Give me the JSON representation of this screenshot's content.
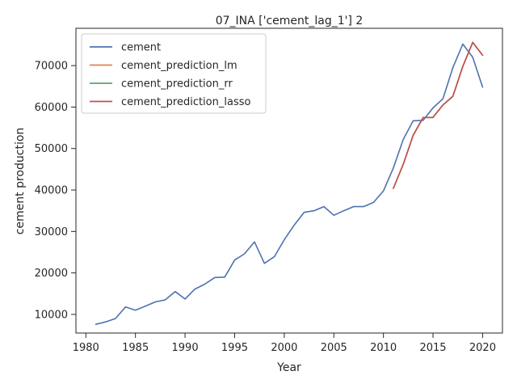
{
  "chart_data": {
    "type": "line",
    "title": "07_INA ['cement_lag_1'] 2",
    "xlabel": "Year",
    "ylabel": "cement production",
    "xlim": [
      1979,
      2022
    ],
    "ylim": [
      5500,
      79000
    ],
    "xticks": [
      1980,
      1985,
      1990,
      1995,
      2000,
      2005,
      2010,
      2015,
      2020
    ],
    "yticks": [
      10000,
      20000,
      30000,
      40000,
      50000,
      60000,
      70000
    ],
    "legend_position": "top-left",
    "series": [
      {
        "name": "cement",
        "color": "#4c72b0",
        "x": [
          1981,
          1982,
          1983,
          1984,
          1985,
          1986,
          1987,
          1988,
          1989,
          1990,
          1991,
          1992,
          1993,
          1994,
          1995,
          1996,
          1997,
          1998,
          1999,
          2000,
          2001,
          2002,
          2003,
          2004,
          2005,
          2006,
          2007,
          2008,
          2009,
          2010,
          2011,
          2012,
          2013,
          2014,
          2015,
          2016,
          2017,
          2018,
          2019,
          2020
        ],
        "y": [
          7600,
          8200,
          9000,
          11800,
          11000,
          12000,
          13000,
          13500,
          15500,
          13700,
          16100,
          17300,
          18900,
          19000,
          23100,
          24600,
          27500,
          22300,
          23900,
          28000,
          31500,
          34600,
          35000,
          36000,
          33900,
          35000,
          36000,
          36000,
          37000,
          39800,
          45300,
          52200,
          56700,
          56800,
          59800,
          62000,
          69500,
          75200,
          72000,
          64800
        ]
      },
      {
        "name": "cement_prediction_lm",
        "color": "#dd8452",
        "x": [
          2011,
          2012,
          2013,
          2014,
          2015,
          2016,
          2017,
          2018,
          2019,
          2020
        ],
        "y": [
          40400,
          46200,
          53200,
          57500,
          57500,
          60500,
          62600,
          69800,
          75600,
          72500
        ]
      },
      {
        "name": "cement_prediction_rr",
        "color": "#55a868",
        "x": [
          2011,
          2012,
          2013,
          2014,
          2015,
          2016,
          2017,
          2018,
          2019,
          2020
        ],
        "y": [
          40400,
          46200,
          53200,
          57500,
          57500,
          60500,
          62600,
          69800,
          75600,
          72500
        ]
      },
      {
        "name": "cement_prediction_lasso",
        "color": "#c44e52",
        "x": [
          2011,
          2012,
          2013,
          2014,
          2015,
          2016,
          2017,
          2018,
          2019,
          2020
        ],
        "y": [
          40400,
          46200,
          53200,
          57500,
          57500,
          60500,
          62600,
          69800,
          75600,
          72500
        ]
      }
    ]
  }
}
